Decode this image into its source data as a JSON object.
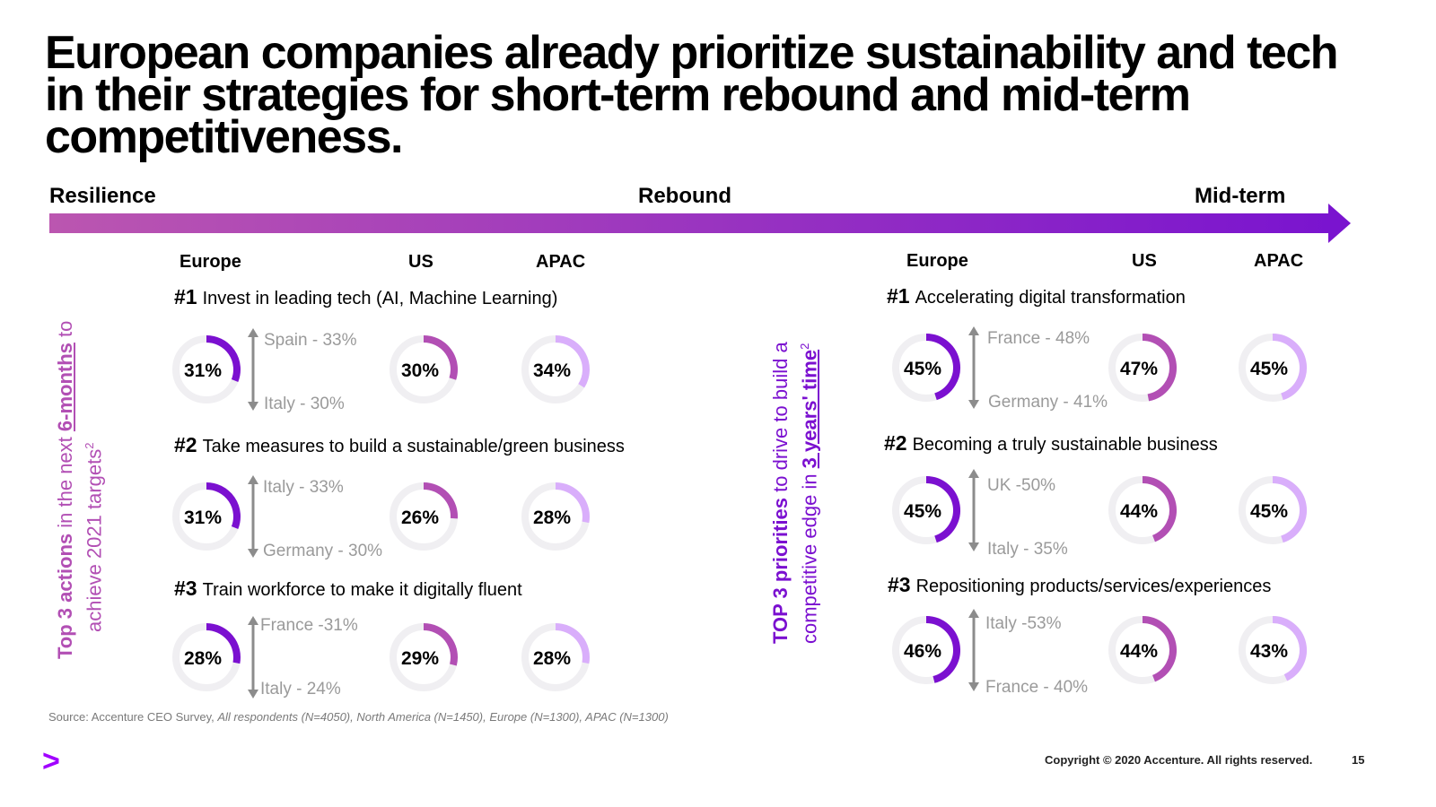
{
  "title": "European companies already prioritize sustainability and tech in their strategies for short-term rebound and mid-term competitiveness.",
  "timeline": {
    "start": "Resilience",
    "middle": "Rebound",
    "end": "Mid-term"
  },
  "colors": {
    "europe": "#7b10d0",
    "us": "#b24fb4",
    "apac": "#d9aefb",
    "track": "#f0eff2",
    "comparison": "#8c8c8c"
  },
  "left_sidebar": {
    "bold_lead": "Top 3 actions",
    "mid": " in the next ",
    "underlined": "6-months",
    "tail": " to",
    "line2": "achieve 2021 targets",
    "superscript": "2"
  },
  "right_sidebar": {
    "bold_lead": "TOP 3 priorities",
    "tail": " to drive to build a",
    "line2a": "competitive edge in ",
    "underlined": "3 years' time",
    "superscript": "2"
  },
  "left_headers": [
    "Europe",
    "US",
    "APAC"
  ],
  "right_headers": [
    "Europe",
    "US",
    "APAC"
  ],
  "chart_data": [
    {
      "type": "donut",
      "panel": "Top 3 actions in the next 6-months",
      "regions": [
        "Europe",
        "US",
        "APAC"
      ],
      "items": [
        {
          "rank": "#1",
          "label": "Invest in leading tech (AI, Machine Learning)",
          "values": [
            31,
            30,
            34
          ],
          "labels": [
            "31%",
            "30%",
            "34%"
          ],
          "high": "Spain - 33%",
          "low": "Italy - 30%"
        },
        {
          "rank": "#2",
          "label": "Take measures to build a sustainable/green business",
          "values": [
            31,
            26,
            28
          ],
          "labels": [
            "31%",
            "26%",
            "28%"
          ],
          "high": "Italy - 33%",
          "low": "Germany - 30%"
        },
        {
          "rank": "#3",
          "label": "Train workforce to make it digitally fluent",
          "values": [
            28,
            29,
            28
          ],
          "labels": [
            "28%",
            "29%",
            "28%"
          ],
          "high": "France -31%",
          "low": "Italy - 24%"
        }
      ]
    },
    {
      "type": "donut",
      "panel": "TOP 3 priorities to drive to build a competitive edge in 3 years' time",
      "regions": [
        "Europe",
        "US",
        "APAC"
      ],
      "items": [
        {
          "rank": "#1",
          "label": "Accelerating digital transformation",
          "values": [
            45,
            47,
            45
          ],
          "labels": [
            "45%",
            "47%",
            "45%"
          ],
          "high": "France - 48%",
          "low": "Germany - 41%"
        },
        {
          "rank": "#2",
          "label": "Becoming a truly sustainable business",
          "values": [
            45,
            44,
            45
          ],
          "labels": [
            "45%",
            "44%",
            "45%"
          ],
          "high": "UK -50%",
          "low": "Italy - 35%"
        },
        {
          "rank": "#3",
          "label": "Repositioning products/services/experiences",
          "values": [
            46,
            44,
            43
          ],
          "labels": [
            "46%",
            "44%",
            "43%"
          ],
          "high": "Italy -53%",
          "low": "France - 40%"
        }
      ]
    }
  ],
  "source": {
    "prefix": "Source: Accenture CEO Survey, ",
    "detail": "All respondents (N=4050), North America (N=1450), Europe (N=1300), APAC (N=1300)"
  },
  "footer": {
    "copyright": "Copyright © 2020 Accenture. All rights reserved.",
    "page": "15",
    "logo": ">"
  }
}
